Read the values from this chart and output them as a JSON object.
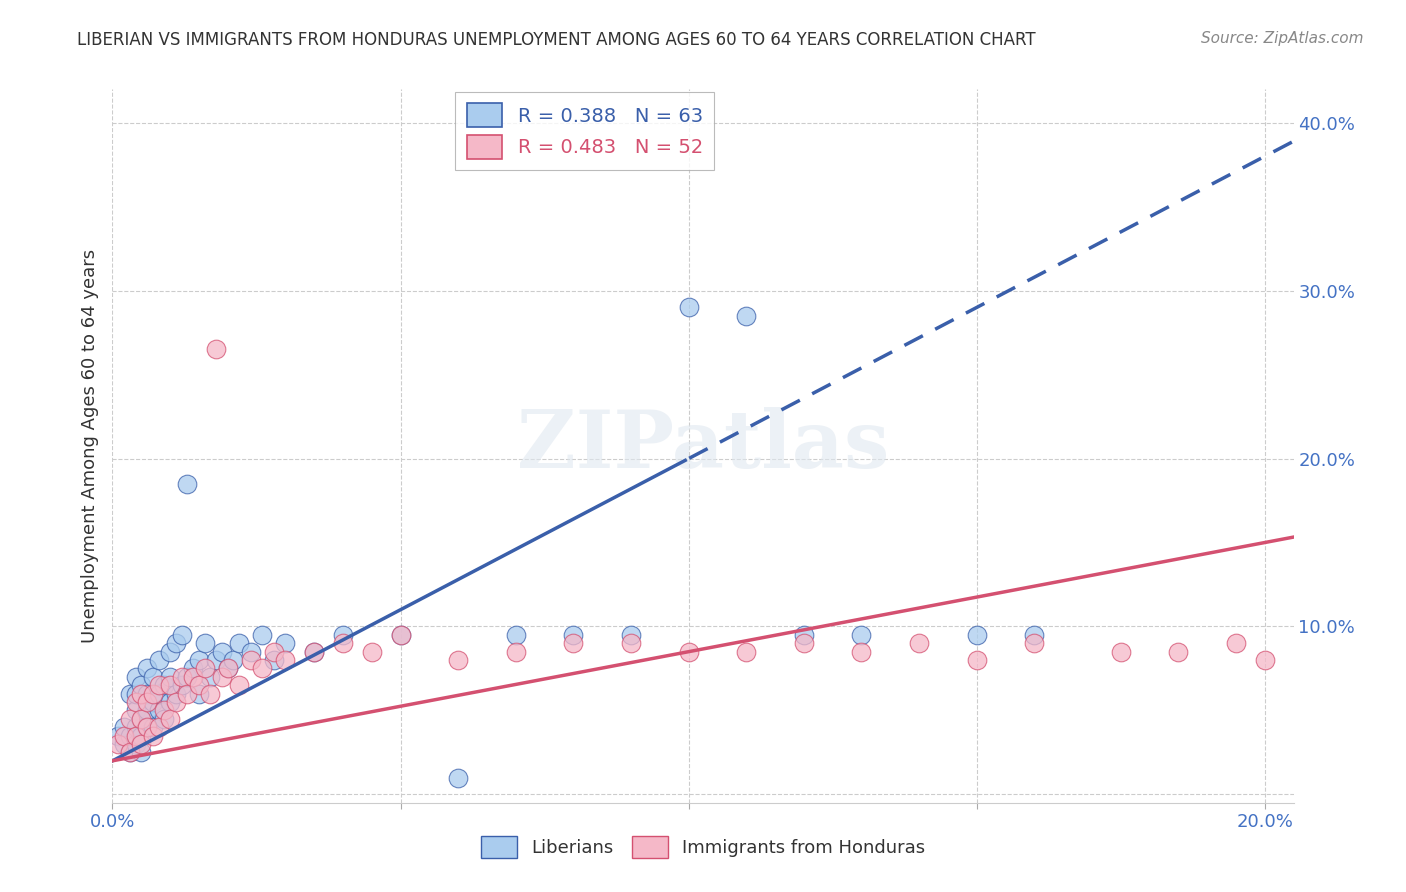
{
  "title": "LIBERIAN VS IMMIGRANTS FROM HONDURAS UNEMPLOYMENT AMONG AGES 60 TO 64 YEARS CORRELATION CHART",
  "source": "Source: ZipAtlas.com",
  "ylabel": "Unemployment Among Ages 60 to 64 years",
  "xlim": [
    0.0,
    0.205
  ],
  "ylim": [
    -0.005,
    0.42
  ],
  "liberian_R": 0.388,
  "liberian_N": 63,
  "honduras_R": 0.483,
  "honduras_N": 52,
  "liberian_color": "#aaccee",
  "honduras_color": "#f5b8c8",
  "liberian_line_color": "#3a5faa",
  "honduras_line_color": "#d45070",
  "background_color": "#ffffff",
  "liberian_x": [
    0.001,
    0.002,
    0.002,
    0.003,
    0.003,
    0.003,
    0.004,
    0.004,
    0.004,
    0.004,
    0.004,
    0.005,
    0.005,
    0.005,
    0.005,
    0.006,
    0.006,
    0.006,
    0.006,
    0.007,
    0.007,
    0.007,
    0.008,
    0.008,
    0.008,
    0.009,
    0.009,
    0.01,
    0.01,
    0.01,
    0.011,
    0.011,
    0.012,
    0.012,
    0.013,
    0.013,
    0.014,
    0.015,
    0.015,
    0.016,
    0.017,
    0.018,
    0.019,
    0.02,
    0.021,
    0.022,
    0.024,
    0.026,
    0.028,
    0.03,
    0.035,
    0.04,
    0.05,
    0.06,
    0.07,
    0.08,
    0.09,
    0.1,
    0.11,
    0.12,
    0.13,
    0.15,
    0.16
  ],
  "liberian_y": [
    0.035,
    0.03,
    0.04,
    0.025,
    0.035,
    0.06,
    0.03,
    0.04,
    0.05,
    0.06,
    0.07,
    0.025,
    0.035,
    0.045,
    0.065,
    0.04,
    0.05,
    0.06,
    0.075,
    0.04,
    0.055,
    0.07,
    0.05,
    0.06,
    0.08,
    0.045,
    0.065,
    0.055,
    0.07,
    0.085,
    0.06,
    0.09,
    0.065,
    0.095,
    0.07,
    0.185,
    0.075,
    0.06,
    0.08,
    0.09,
    0.07,
    0.08,
    0.085,
    0.075,
    0.08,
    0.09,
    0.085,
    0.095,
    0.08,
    0.09,
    0.085,
    0.095,
    0.095,
    0.01,
    0.095,
    0.095,
    0.095,
    0.29,
    0.285,
    0.095,
    0.095,
    0.095,
    0.095
  ],
  "honduras_x": [
    0.001,
    0.002,
    0.003,
    0.003,
    0.004,
    0.004,
    0.005,
    0.005,
    0.005,
    0.006,
    0.006,
    0.007,
    0.007,
    0.008,
    0.008,
    0.009,
    0.01,
    0.01,
    0.011,
    0.012,
    0.013,
    0.014,
    0.015,
    0.016,
    0.017,
    0.018,
    0.019,
    0.02,
    0.022,
    0.024,
    0.026,
    0.028,
    0.03,
    0.035,
    0.04,
    0.045,
    0.05,
    0.06,
    0.07,
    0.08,
    0.09,
    0.1,
    0.11,
    0.12,
    0.13,
    0.14,
    0.15,
    0.16,
    0.175,
    0.185,
    0.195,
    0.2
  ],
  "honduras_y": [
    0.03,
    0.035,
    0.025,
    0.045,
    0.035,
    0.055,
    0.03,
    0.045,
    0.06,
    0.04,
    0.055,
    0.035,
    0.06,
    0.04,
    0.065,
    0.05,
    0.045,
    0.065,
    0.055,
    0.07,
    0.06,
    0.07,
    0.065,
    0.075,
    0.06,
    0.265,
    0.07,
    0.075,
    0.065,
    0.08,
    0.075,
    0.085,
    0.08,
    0.085,
    0.09,
    0.085,
    0.095,
    0.08,
    0.085,
    0.09,
    0.09,
    0.085,
    0.085,
    0.09,
    0.085,
    0.09,
    0.08,
    0.09,
    0.085,
    0.085,
    0.09,
    0.08
  ]
}
